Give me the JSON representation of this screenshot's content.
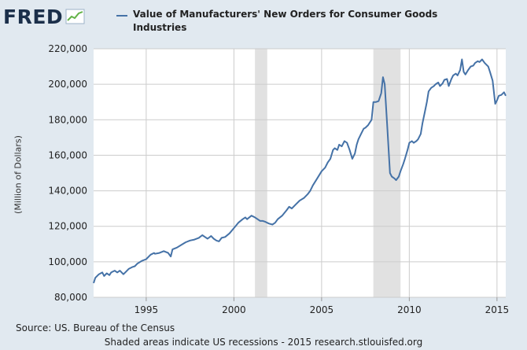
{
  "logo": {
    "text": "FRED",
    "icon": "trend-line-icon"
  },
  "colors": {
    "series": "#4572a7",
    "recession": "#e1e1e1",
    "grid": "#cccccc",
    "background": "#e1e9f0"
  },
  "source": "Source: US. Bureau of the Census",
  "footer": "Shaded areas indicate US recessions - 2015 research.stlouisfed.org",
  "chart_data": {
    "type": "line",
    "title": "Value of Manufacturers' New Orders for Consumer Goods Industries",
    "xlabel": "",
    "ylabel": "(Million of Dollars)",
    "xlim": [
      1992.0,
      2015.5
    ],
    "ylim": [
      80000,
      220000
    ],
    "yticks": [
      80000,
      100000,
      120000,
      140000,
      160000,
      180000,
      200000,
      220000
    ],
    "ytick_labels": [
      "80,000",
      "100,000",
      "120,000",
      "140,000",
      "160,000",
      "180,000",
      "200,000",
      "220,000"
    ],
    "xticks": [
      1995,
      2000,
      2005,
      2010,
      2015
    ],
    "xtick_labels": [
      "1995",
      "2000",
      "2005",
      "2010",
      "2015"
    ],
    "grid": true,
    "recessions": [
      [
        2001.2,
        2001.9
      ],
      [
        2007.95,
        2009.5
      ]
    ],
    "series": [
      {
        "name": "Value of Manufacturers' New Orders for Consumer Goods Industries",
        "x": [
          1992.0,
          1992.1,
          1992.3,
          1992.5,
          1992.6,
          1992.75,
          1992.9,
          1993.0,
          1993.2,
          1993.35,
          1993.5,
          1993.7,
          1993.85,
          1994.0,
          1994.2,
          1994.35,
          1994.5,
          1994.75,
          1995.0,
          1995.25,
          1995.45,
          1995.5,
          1995.75,
          1996.0,
          1996.25,
          1996.4,
          1996.5,
          1996.75,
          1997.0,
          1997.25,
          1997.5,
          1997.75,
          1998.0,
          1998.2,
          1998.35,
          1998.5,
          1998.7,
          1998.85,
          1999.0,
          1999.15,
          1999.3,
          1999.5,
          1999.75,
          2000.0,
          2000.25,
          2000.5,
          2000.65,
          2000.75,
          2001.0,
          2001.2,
          2001.35,
          2001.5,
          2001.65,
          2001.8,
          2002.0,
          2002.2,
          2002.35,
          2002.5,
          2002.75,
          2003.0,
          2003.15,
          2003.3,
          2003.5,
          2003.75,
          2004.0,
          2004.2,
          2004.35,
          2004.5,
          2004.75,
          2005.0,
          2005.2,
          2005.35,
          2005.5,
          2005.65,
          2005.75,
          2005.9,
          2006.0,
          2006.15,
          2006.3,
          2006.45,
          2006.6,
          2006.75,
          2006.9,
          2007.0,
          2007.1,
          2007.25,
          2007.4,
          2007.5,
          2007.65,
          2007.85,
          2007.95,
          2008.1,
          2008.25,
          2008.4,
          2008.5,
          2008.6,
          2008.75,
          2008.9,
          2009.0,
          2009.15,
          2009.25,
          2009.4,
          2009.5,
          2009.65,
          2009.75,
          2009.9,
          2010.0,
          2010.15,
          2010.25,
          2010.4,
          2010.5,
          2010.65,
          2010.75,
          2010.9,
          2011.0,
          2011.1,
          2011.25,
          2011.4,
          2011.5,
          2011.65,
          2011.75,
          2011.9,
          2012.0,
          2012.15,
          2012.25,
          2012.4,
          2012.5,
          2012.65,
          2012.75,
          2012.9,
          2013.0,
          2013.1,
          2013.2,
          2013.35,
          2013.5,
          2013.65,
          2013.75,
          2013.9,
          2014.0,
          2014.15,
          2014.3,
          2014.5,
          2014.6,
          2014.75,
          2014.9,
          2015.0,
          2015.1,
          2015.25,
          2015.4,
          2015.5
        ],
        "values": [
          88000,
          91000,
          93000,
          94000,
          92000,
          93500,
          92500,
          94000,
          95000,
          94000,
          95000,
          93000,
          94500,
          96000,
          97000,
          97500,
          99000,
          100500,
          101500,
          104000,
          105000,
          104500,
          105000,
          106000,
          105000,
          103000,
          107000,
          108000,
          109500,
          111000,
          112000,
          112500,
          113500,
          115000,
          114000,
          113000,
          114500,
          113000,
          112000,
          111500,
          113500,
          114000,
          116000,
          119000,
          122000,
          124000,
          125000,
          124000,
          126000,
          125000,
          124000,
          123000,
          123000,
          122500,
          121500,
          121000,
          122000,
          124000,
          126000,
          129000,
          131000,
          130000,
          132000,
          134500,
          136000,
          138000,
          140000,
          143000,
          147000,
          151000,
          153000,
          156000,
          158000,
          163000,
          164000,
          163000,
          166000,
          165000,
          168000,
          167000,
          163000,
          158000,
          161000,
          166000,
          169000,
          172000,
          175000,
          175500,
          177000,
          180000,
          190000,
          190000,
          190500,
          195000,
          204000,
          200000,
          175000,
          150000,
          148000,
          147000,
          146000,
          148000,
          151000,
          155000,
          158000,
          163000,
          167000,
          168000,
          167000,
          168000,
          169000,
          172000,
          178000,
          185000,
          190000,
          196000,
          198000,
          199000,
          200000,
          201000,
          199000,
          200500,
          202500,
          203000,
          199000,
          203000,
          205000,
          206000,
          205000,
          208000,
          214000,
          207000,
          205500,
          208000,
          210000,
          210500,
          212000,
          213000,
          212500,
          214000,
          212000,
          210000,
          207000,
          202000,
          189000,
          191000,
          193500,
          194000,
          195500,
          193500
        ]
      }
    ]
  }
}
